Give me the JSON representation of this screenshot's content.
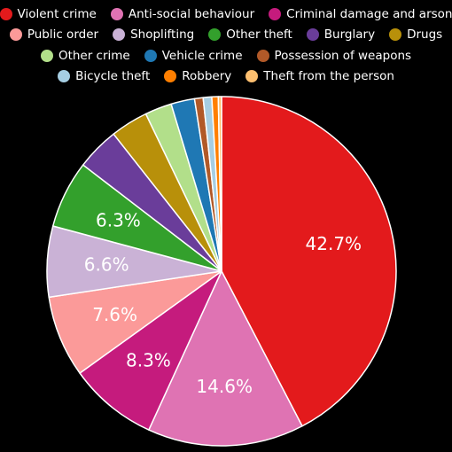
{
  "chart_data": {
    "type": "pie",
    "title": "",
    "slices": [
      {
        "label": "Violent crime",
        "value": 42.7,
        "color": "#e31a1c",
        "display": "42.7%"
      },
      {
        "label": "Anti-social behaviour",
        "value": 14.6,
        "color": "#df73b3",
        "display": "14.6%"
      },
      {
        "label": "Criminal damage and arson",
        "value": 8.3,
        "color": "#c51b7d",
        "display": "8.3%"
      },
      {
        "label": "Public order",
        "value": 7.6,
        "color": "#fb9a99",
        "display": "7.6%"
      },
      {
        "label": "Shoplifting",
        "value": 6.6,
        "color": "#cab2d6",
        "display": "6.6%"
      },
      {
        "label": "Other theft",
        "value": 6.3,
        "color": "#33a02c",
        "display": "6.3%"
      },
      {
        "label": "Burglary",
        "value": 4.0,
        "color": "#6a3d9a",
        "display": ""
      },
      {
        "label": "Drugs",
        "value": 3.5,
        "color": "#b8900a",
        "display": ""
      },
      {
        "label": "Other crime",
        "value": 2.5,
        "color": "#b2df8a",
        "display": ""
      },
      {
        "label": "Vehicle crime",
        "value": 2.2,
        "color": "#1f78b4",
        "display": ""
      },
      {
        "label": "Possession of weapons",
        "value": 0.8,
        "color": "#b15928",
        "display": ""
      },
      {
        "label": "Bicycle theft",
        "value": 0.8,
        "color": "#a6cee3",
        "display": ""
      },
      {
        "label": "Robbery",
        "value": 0.6,
        "color": "#ff7f00",
        "display": ""
      },
      {
        "label": "Theft from the person",
        "value": 0.3,
        "color": "#fdbf6f",
        "display": ""
      }
    ],
    "legend_position": "top",
    "legend_rows": [
      [
        "Violent crime",
        "Anti-social behaviour",
        "Criminal damage and arson"
      ],
      [
        "Public order",
        "Shoplifting",
        "Other theft",
        "Burglary",
        "Drugs"
      ],
      [
        "Other crime",
        "Vehicle crime",
        "Possession of weapons"
      ],
      [
        "Bicycle theft",
        "Robbery",
        "Theft from the person"
      ]
    ]
  }
}
